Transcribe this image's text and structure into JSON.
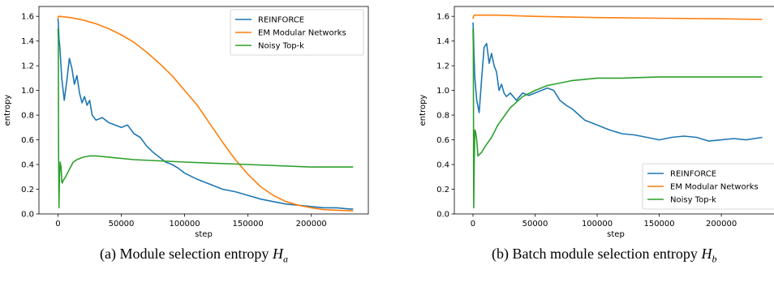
{
  "captions": [
    {
      "prefix": "(a) Module selection entropy",
      "symbol": "H",
      "sub": "a"
    },
    {
      "prefix": "(b) Batch module selection entropy",
      "symbol": "H",
      "sub": "b"
    }
  ],
  "chart_data": [
    {
      "type": "line",
      "xlabel": "step",
      "ylabel": "entropy",
      "xlim": [
        -15000,
        245000
      ],
      "ylim": [
        0.0,
        1.68
      ],
      "xticks": [
        0,
        50000,
        100000,
        150000,
        200000
      ],
      "yticks": [
        "0.0",
        "0.2",
        "0.4",
        "0.6",
        "0.8",
        "1.0",
        "1.2",
        "1.4",
        "1.6"
      ],
      "legend_position": "top-right",
      "series": [
        {
          "name": "REINFORCE",
          "color": "#1f77b4",
          "x": [
            0,
            300,
            800,
            1500,
            3000,
            5000,
            7000,
            9000,
            11000,
            13000,
            15000,
            17000,
            19000,
            21000,
            23000,
            25000,
            27000,
            30000,
            35000,
            40000,
            45000,
            50000,
            55000,
            60000,
            65000,
            70000,
            75000,
            80000,
            85000,
            90000,
            95000,
            100000,
            110000,
            120000,
            130000,
            140000,
            150000,
            160000,
            170000,
            180000,
            190000,
            200000,
            210000,
            220000,
            230000,
            233000
          ],
          "y": [
            1.58,
            1.55,
            1.42,
            1.35,
            1.1,
            0.92,
            1.08,
            1.26,
            1.18,
            1.05,
            1.12,
            0.98,
            0.9,
            0.95,
            0.88,
            0.92,
            0.8,
            0.76,
            0.78,
            0.74,
            0.72,
            0.7,
            0.72,
            0.65,
            0.62,
            0.55,
            0.5,
            0.46,
            0.42,
            0.4,
            0.37,
            0.33,
            0.28,
            0.24,
            0.2,
            0.18,
            0.15,
            0.12,
            0.1,
            0.08,
            0.07,
            0.06,
            0.05,
            0.05,
            0.04,
            0.04
          ]
        },
        {
          "name": "EM Modular Networks",
          "color": "#ff7f0e",
          "x": [
            0,
            500,
            1000,
            10000,
            20000,
            30000,
            40000,
            50000,
            60000,
            70000,
            80000,
            90000,
            100000,
            110000,
            120000,
            130000,
            140000,
            150000,
            160000,
            170000,
            180000,
            190000,
            200000,
            210000,
            220000,
            233000
          ],
          "y": [
            1.58,
            1.6,
            1.6,
            1.59,
            1.57,
            1.54,
            1.5,
            1.45,
            1.39,
            1.31,
            1.22,
            1.12,
            1.0,
            0.88,
            0.73,
            0.58,
            0.44,
            0.32,
            0.22,
            0.15,
            0.1,
            0.07,
            0.05,
            0.035,
            0.03,
            0.025
          ]
        },
        {
          "name": "Noisy Top-k",
          "color": "#2ca02c",
          "x": [
            0,
            300,
            500,
            800,
            1200,
            1800,
            2500,
            3000,
            3500,
            4000,
            6000,
            8000,
            10000,
            12000,
            15000,
            20000,
            25000,
            30000,
            40000,
            60000,
            80000,
            100000,
            150000,
            200000,
            233000
          ],
          "y": [
            1.5,
            1.42,
            0.5,
            0.05,
            0.3,
            0.42,
            0.38,
            0.26,
            0.25,
            0.27,
            0.3,
            0.34,
            0.38,
            0.42,
            0.44,
            0.46,
            0.47,
            0.47,
            0.46,
            0.44,
            0.43,
            0.42,
            0.4,
            0.38,
            0.38
          ]
        }
      ]
    },
    {
      "type": "line",
      "xlabel": "step",
      "ylabel": "entropy",
      "xlim": [
        -15000,
        245000
      ],
      "ylim": [
        0.0,
        1.68
      ],
      "xticks": [
        0,
        50000,
        100000,
        150000,
        200000
      ],
      "yticks": [
        "0.0",
        "0.2",
        "0.4",
        "0.6",
        "0.8",
        "1.0",
        "1.2",
        "1.4",
        "1.6"
      ],
      "legend_position": "lower-right",
      "series": [
        {
          "name": "REINFORCE",
          "color": "#1f77b4",
          "x": [
            0,
            300,
            800,
            1500,
            3000,
            5000,
            7000,
            9000,
            11000,
            13000,
            15000,
            17000,
            19000,
            21000,
            23000,
            25000,
            27000,
            30000,
            35000,
            40000,
            45000,
            50000,
            55000,
            60000,
            65000,
            70000,
            75000,
            80000,
            90000,
            100000,
            110000,
            120000,
            130000,
            140000,
            150000,
            160000,
            170000,
            180000,
            190000,
            200000,
            210000,
            220000,
            233000
          ],
          "y": [
            1.55,
            1.5,
            1.3,
            1.1,
            0.92,
            0.82,
            1.1,
            1.35,
            1.38,
            1.22,
            1.3,
            1.2,
            1.15,
            1.0,
            1.05,
            0.98,
            0.95,
            0.98,
            0.92,
            0.98,
            0.96,
            0.98,
            1.0,
            1.02,
            1.0,
            0.92,
            0.88,
            0.85,
            0.76,
            0.72,
            0.68,
            0.65,
            0.64,
            0.62,
            0.6,
            0.62,
            0.63,
            0.62,
            0.59,
            0.6,
            0.61,
            0.6,
            0.62
          ]
        },
        {
          "name": "EM Modular Networks",
          "color": "#ff7f0e",
          "x": [
            0,
            500,
            1000,
            20000,
            50000,
            100000,
            150000,
            200000,
            233000
          ],
          "y": [
            1.58,
            1.6,
            1.61,
            1.61,
            1.6,
            1.59,
            1.585,
            1.58,
            1.575
          ]
        },
        {
          "name": "Noisy Top-k",
          "color": "#2ca02c",
          "x": [
            0,
            300,
            600,
            1000,
            1500,
            2200,
            3000,
            4000,
            5000,
            7000,
            10000,
            15000,
            20000,
            30000,
            40000,
            50000,
            60000,
            70000,
            80000,
            100000,
            120000,
            150000,
            180000,
            200000,
            233000
          ],
          "y": [
            1.5,
            1.35,
            0.05,
            0.4,
            0.68,
            0.66,
            0.6,
            0.47,
            0.48,
            0.5,
            0.55,
            0.62,
            0.72,
            0.86,
            0.95,
            1.0,
            1.04,
            1.06,
            1.08,
            1.1,
            1.1,
            1.11,
            1.11,
            1.11,
            1.11
          ]
        }
      ]
    }
  ]
}
